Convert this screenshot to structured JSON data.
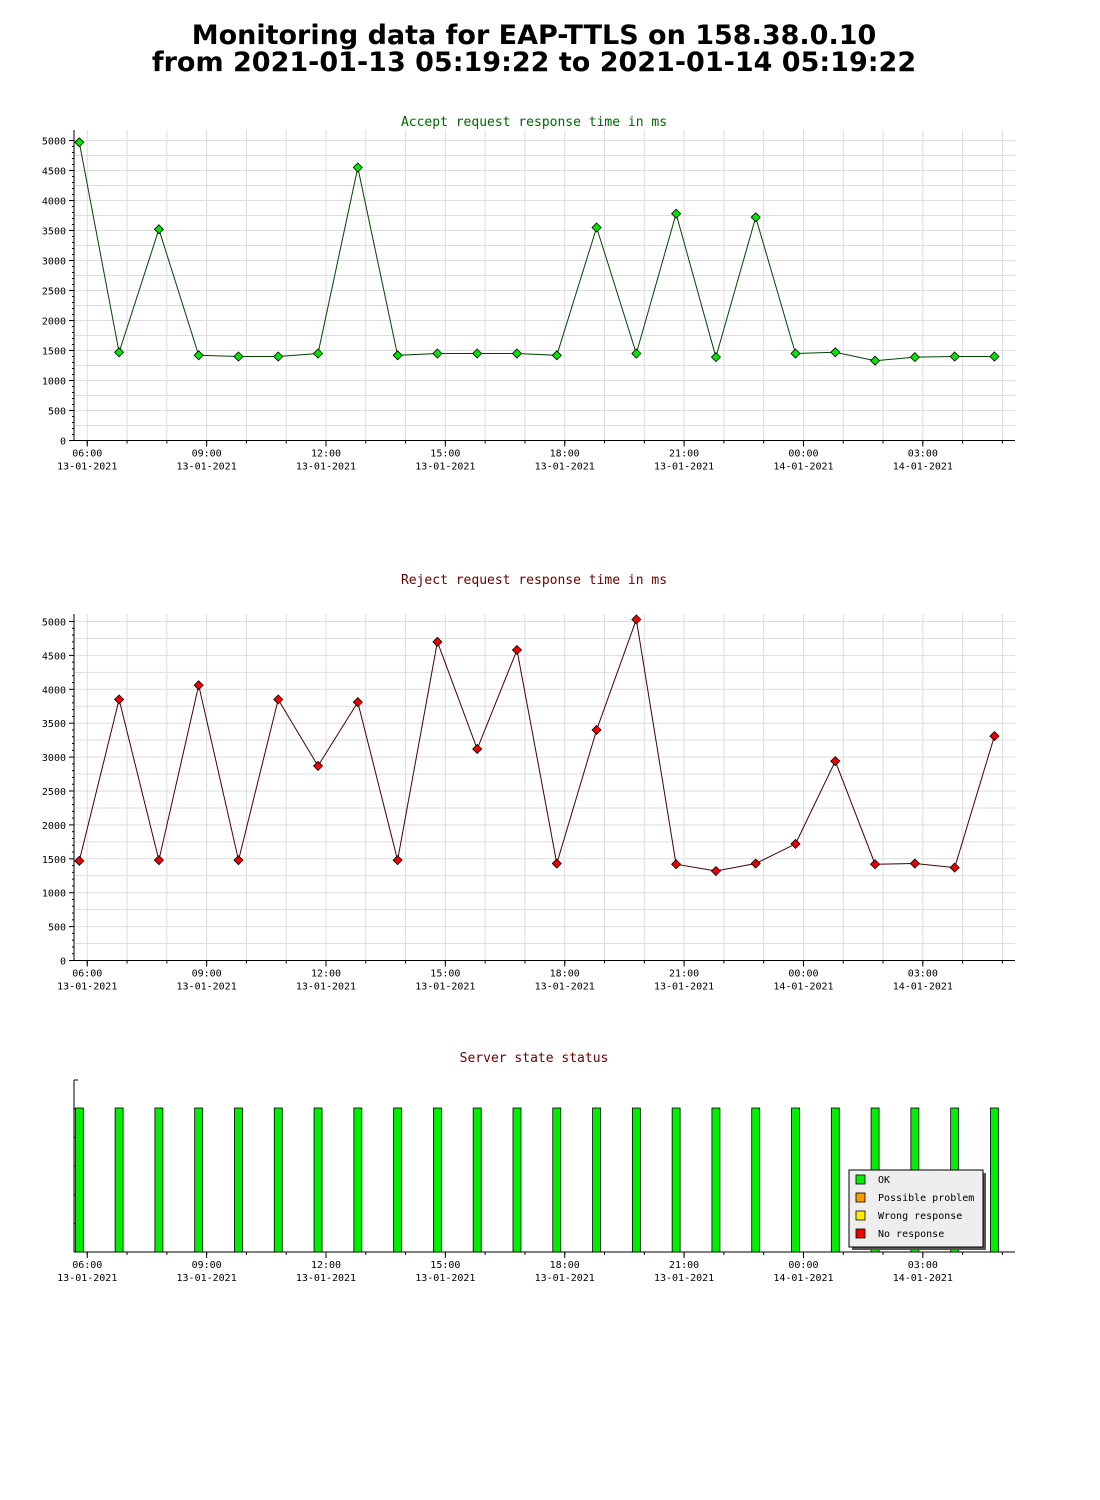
{
  "header": {
    "title_line1": "Monitoring data for EAP-TTLS on 158.38.0.10",
    "title_line2": "from 2021-01-13 05:19:22 to 2021-01-14 05:19:22"
  },
  "colors": {
    "accept_marker": "#00e600",
    "accept_line": "#004400",
    "accept_title": "#006600",
    "reject_marker": "#ee0000",
    "reject_line": "#440000",
    "reject_title": "#660000",
    "status_title": "#660000",
    "grid": "#dddddd"
  },
  "x_ticks": [
    {
      "time": "06:00",
      "date": "13-01-2021"
    },
    {
      "time": "09:00",
      "date": "13-01-2021"
    },
    {
      "time": "12:00",
      "date": "13-01-2021"
    },
    {
      "time": "15:00",
      "date": "13-01-2021"
    },
    {
      "time": "18:00",
      "date": "13-01-2021"
    },
    {
      "time": "21:00",
      "date": "13-01-2021"
    },
    {
      "time": "00:00",
      "date": "14-01-2021"
    },
    {
      "time": "03:00",
      "date": "14-01-2021"
    }
  ],
  "legend": [
    {
      "label": "OK",
      "color": "#00ee00"
    },
    {
      "label": "Possible problem",
      "color": "#ff9900"
    },
    {
      "label": "Wrong response",
      "color": "#ffee00"
    },
    {
      "label": "No response",
      "color": "#ee0000"
    }
  ],
  "chart_data": [
    {
      "id": "accept",
      "type": "line",
      "title": "Accept request response time in ms",
      "xlabel": "",
      "ylabel": "",
      "ylim": [
        0,
        5000
      ],
      "y_ticks": [
        0,
        500,
        1000,
        1500,
        2000,
        2500,
        3000,
        3500,
        4000,
        4500,
        5000
      ],
      "x_range": [
        "2021-01-13 05:40",
        "2021-01-14 05:19"
      ],
      "x": [
        "2021-01-13 05:48",
        "2021-01-13 06:48",
        "2021-01-13 07:48",
        "2021-01-13 08:48",
        "2021-01-13 09:48",
        "2021-01-13 10:48",
        "2021-01-13 11:48",
        "2021-01-13 12:48",
        "2021-01-13 13:48",
        "2021-01-13 14:48",
        "2021-01-13 15:48",
        "2021-01-13 16:48",
        "2021-01-13 17:48",
        "2021-01-13 18:48",
        "2021-01-13 19:48",
        "2021-01-13 20:48",
        "2021-01-13 21:48",
        "2021-01-13 22:48",
        "2021-01-13 23:48",
        "2021-01-14 00:48",
        "2021-01-14 01:48",
        "2021-01-14 02:48",
        "2021-01-14 03:48",
        "2021-01-14 04:48"
      ],
      "values": [
        4970,
        1470,
        3520,
        1420,
        1400,
        1400,
        1450,
        4550,
        1420,
        1450,
        1450,
        1450,
        1420,
        3550,
        1450,
        3780,
        1390,
        3720,
        1450,
        1470,
        1330,
        1390,
        1400,
        1400
      ],
      "grid": true
    },
    {
      "id": "reject",
      "type": "line",
      "title": "Reject request response time in ms",
      "xlabel": "",
      "ylabel": "",
      "ylim": [
        0,
        5000
      ],
      "y_ticks": [
        0,
        500,
        1000,
        1500,
        2000,
        2500,
        3000,
        3500,
        4000,
        4500,
        5000
      ],
      "x_range": [
        "2021-01-13 05:40",
        "2021-01-14 05:19"
      ],
      "x": [
        "2021-01-13 05:48",
        "2021-01-13 06:48",
        "2021-01-13 07:48",
        "2021-01-13 08:48",
        "2021-01-13 09:48",
        "2021-01-13 10:48",
        "2021-01-13 11:48",
        "2021-01-13 12:48",
        "2021-01-13 13:48",
        "2021-01-13 14:48",
        "2021-01-13 15:48",
        "2021-01-13 16:48",
        "2021-01-13 17:48",
        "2021-01-13 18:48",
        "2021-01-13 19:48",
        "2021-01-13 20:48",
        "2021-01-13 21:48",
        "2021-01-13 22:48",
        "2021-01-13 23:48",
        "2021-01-14 00:48",
        "2021-01-14 01:48",
        "2021-01-14 02:48",
        "2021-01-14 03:48",
        "2021-01-14 04:48"
      ],
      "values": [
        1470,
        3850,
        1480,
        4060,
        1480,
        3850,
        2870,
        3810,
        1480,
        4700,
        3120,
        4580,
        1430,
        3400,
        5030,
        1420,
        1320,
        1430,
        1720,
        2940,
        1420,
        1430,
        1370,
        3310
      ],
      "grid": true
    },
    {
      "id": "status",
      "type": "bar",
      "title": "Server state status",
      "x_range": [
        "2021-01-13 05:40",
        "2021-01-14 05:19"
      ],
      "x": [
        "2021-01-13 05:48",
        "2021-01-13 06:48",
        "2021-01-13 07:48",
        "2021-01-13 08:48",
        "2021-01-13 09:48",
        "2021-01-13 10:48",
        "2021-01-13 11:48",
        "2021-01-13 12:48",
        "2021-01-13 13:48",
        "2021-01-13 14:48",
        "2021-01-13 15:48",
        "2021-01-13 16:48",
        "2021-01-13 17:48",
        "2021-01-13 18:48",
        "2021-01-13 19:48",
        "2021-01-13 20:48",
        "2021-01-13 21:48",
        "2021-01-13 22:48",
        "2021-01-13 23:48",
        "2021-01-14 00:48",
        "2021-01-14 01:48",
        "2021-01-14 02:48",
        "2021-01-14 03:48",
        "2021-01-14 04:48"
      ],
      "values": [
        "OK",
        "OK",
        "OK",
        "OK",
        "OK",
        "OK",
        "OK",
        "OK",
        "OK",
        "OK",
        "OK",
        "OK",
        "OK",
        "OK",
        "OK",
        "OK",
        "OK",
        "OK",
        "OK",
        "OK",
        "OK",
        "OK",
        "OK",
        "OK"
      ],
      "legend_position": "bottom-right"
    }
  ]
}
